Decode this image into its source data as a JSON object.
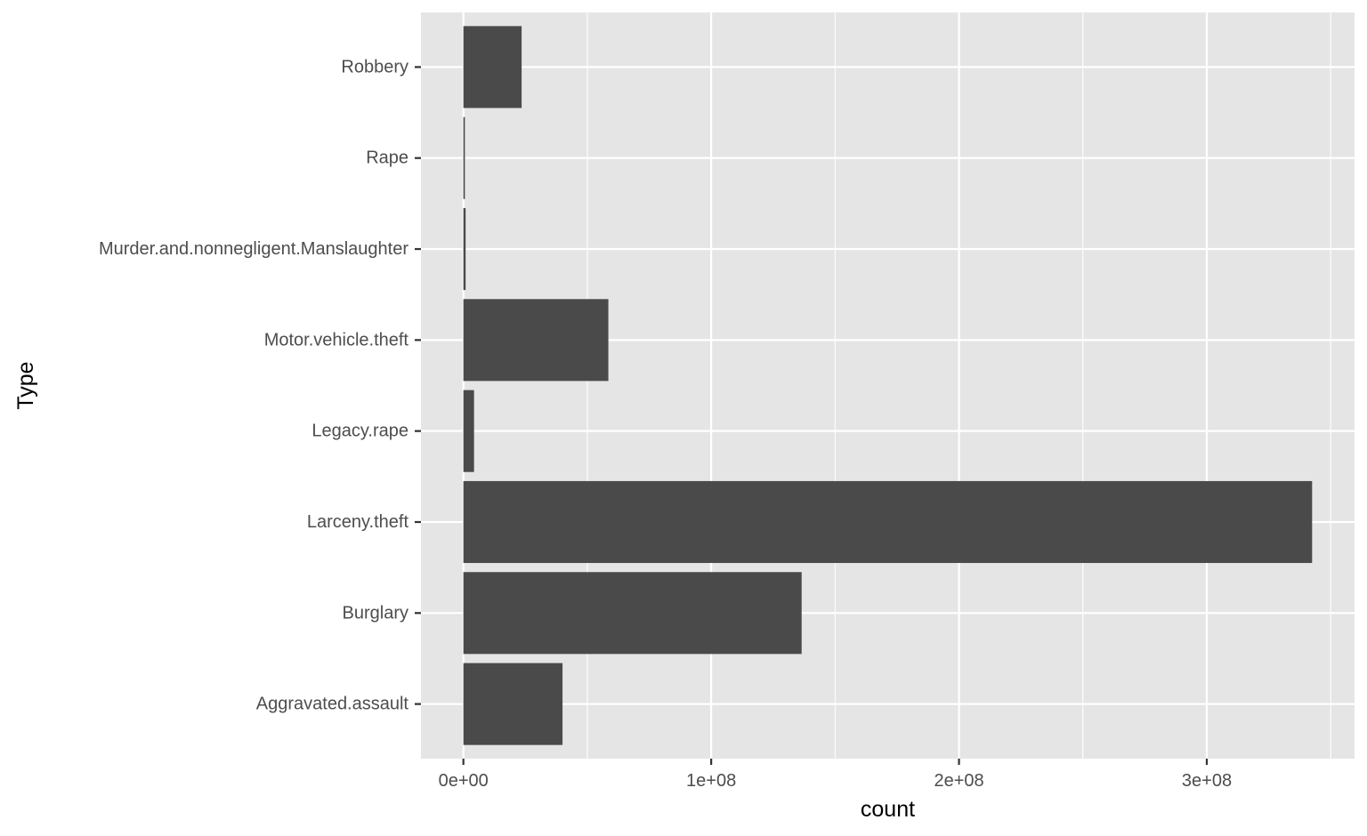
{
  "chart_data": {
    "type": "bar",
    "orientation": "horizontal",
    "categories": [
      "Aggravated.assault",
      "Burglary",
      "Larceny.theft",
      "Legacy.rape",
      "Motor.vehicle.theft",
      "Murder.and.nonnegligent.Manslaughter",
      "Rape",
      "Robbery"
    ],
    "values": [
      40000000,
      136500000,
      342500000,
      4300000,
      58500000,
      900000,
      600000,
      23500000
    ],
    "title": "",
    "xlabel": "count",
    "ylabel": "Type",
    "xlim": [
      -17125000,
      359625000
    ],
    "x_ticks": [
      0,
      100000000,
      200000000,
      300000000
    ],
    "x_tick_labels": [
      "0e+00",
      "1e+08",
      "2e+08",
      "3e+08"
    ],
    "grid": true,
    "legend": "none",
    "colors": {
      "panel": "#e5e5e5",
      "grid": "#ffffff",
      "bar": "#4a4a4a",
      "tick_text": "#4d4d4d",
      "tick_mark": "#333333",
      "title_text": "#000000"
    }
  }
}
